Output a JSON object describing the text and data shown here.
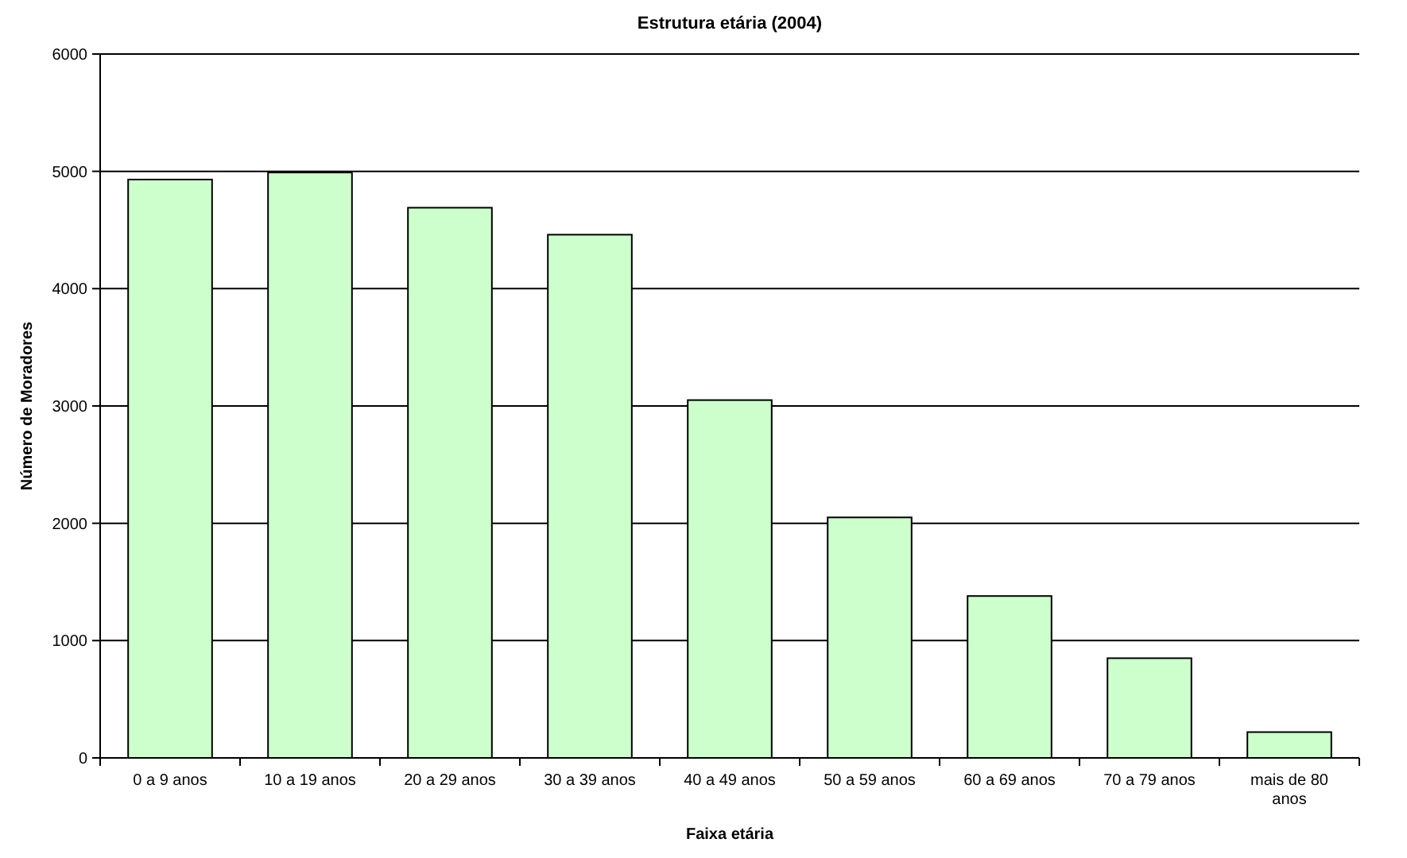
{
  "chart_data": {
    "type": "bar",
    "title": "Estrutura etária (2004)",
    "xlabel": "Faixa etária",
    "ylabel": "Número de Moradores",
    "categories": [
      "0 a 9 anos",
      "10 a 19 anos",
      "20 a 29 anos",
      "30 a 39 anos",
      "40 a 49 anos",
      "50 a 59 anos",
      "60 a 69 anos",
      "70 a 79 anos",
      "mais de 80 anos"
    ],
    "values": [
      4930,
      4990,
      4690,
      4460,
      3050,
      2050,
      1380,
      850,
      220
    ],
    "color": "#ccffcc",
    "ylim": [
      0,
      6000
    ],
    "yticks": [
      0,
      1000,
      2000,
      3000,
      4000,
      5000,
      6000
    ],
    "grid": "y"
  }
}
